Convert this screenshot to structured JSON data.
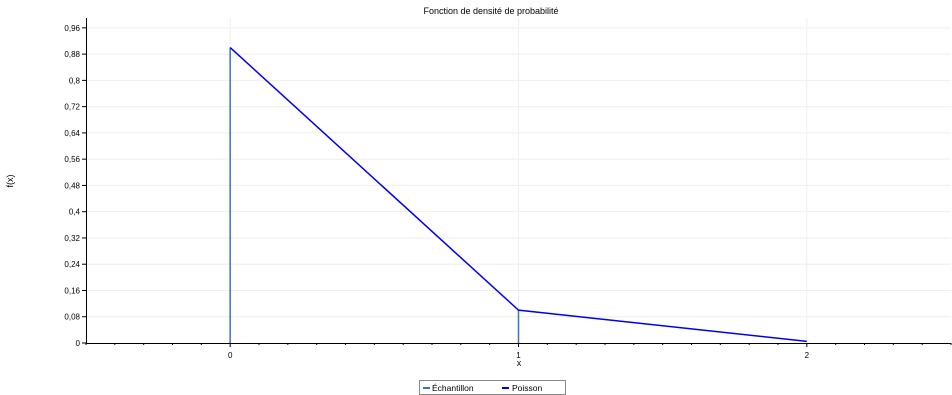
{
  "chart_data": {
    "type": "line",
    "title": "Fonction de densité de probabilité",
    "xlabel": "x",
    "ylabel": "f(x)",
    "xlim": [
      -0.5,
      2.5
    ],
    "ylim": [
      0,
      0.99
    ],
    "x_ticks": [
      0,
      1,
      2
    ],
    "x_tick_labels": [
      "0",
      "1",
      "2"
    ],
    "y_ticks": [
      0,
      0.08,
      0.16,
      0.24,
      0.32,
      0.4,
      0.48,
      0.56,
      0.64,
      0.72,
      0.8,
      0.88,
      0.96
    ],
    "y_tick_labels": [
      "0",
      "0,08",
      "0,16",
      "0,24",
      "0,32",
      "0,4",
      "0,48",
      "0,56",
      "0,64",
      "0,72",
      "0,8",
      "0,88",
      "0,96"
    ],
    "grid": true,
    "legend_position": "bottom-center",
    "series": [
      {
        "name": "Échantillon",
        "kind": "stem",
        "color": "#3a72c8",
        "x": [
          0,
          1
        ],
        "y": [
          0.9,
          0.1
        ]
      },
      {
        "name": "Poisson",
        "kind": "line",
        "color": "#0000ee",
        "x": [
          0,
          1,
          2
        ],
        "y": [
          0.9,
          0.1,
          0.005
        ]
      }
    ]
  }
}
